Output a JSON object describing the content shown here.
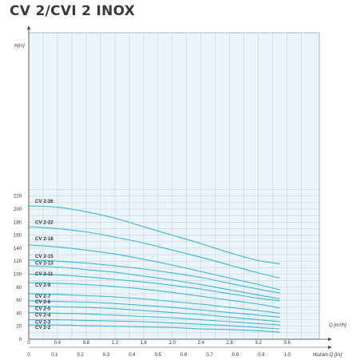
{
  "title": "CV 2/CVI 2 INOX",
  "chart_data": {
    "type": "line",
    "title": "CV 2/CVI 2 INOX",
    "ylabel": "H[m]",
    "xlabel_m3h": "Q [m³/h]",
    "xlabel_ls": "Hozam Q [l/s]",
    "xlim": [
      0,
      4.0
    ],
    "ylim": [
      0,
      230
    ],
    "y_ticks": [
      0,
      20,
      40,
      60,
      80,
      100,
      120,
      140,
      160,
      180,
      200,
      220
    ],
    "x_ticks_m3h": [
      "0",
      "0.4",
      "0.8",
      "1.2",
      "1.6",
      "2.0",
      "2.4",
      "2.8",
      "3.2",
      "3.6"
    ],
    "x_ticks_ls": [
      "0",
      "0.1",
      "0.2",
      "0.3",
      "0.4",
      "0.5",
      "0.6",
      "0.7",
      "0.8",
      "0.9",
      "1.0"
    ],
    "grid": true,
    "series": [
      {
        "name": "CV 2-26",
        "label_y": 210,
        "x": [
          0,
          0.4,
          0.8,
          1.2,
          1.6,
          2.0,
          2.4,
          2.8,
          3.2,
          3.5
        ],
        "y": [
          205,
          203,
          196,
          186,
          173,
          160,
          147,
          133,
          121,
          116
        ]
      },
      {
        "name": "CV 2-22",
        "label_y": 177,
        "x": [
          0,
          0.4,
          0.8,
          1.2,
          1.6,
          2.0,
          2.4,
          2.8,
          3.2,
          3.5
        ],
        "y": [
          173,
          170,
          165,
          157,
          148,
          137,
          126,
          114,
          102,
          94
        ]
      },
      {
        "name": "CV 2-18",
        "label_y": 152,
        "x": [
          0,
          0.4,
          0.8,
          1.2,
          1.6,
          2.0,
          2.4,
          2.8,
          3.2,
          3.5
        ],
        "y": [
          145,
          142,
          137,
          131,
          123,
          114,
          104,
          94,
          84,
          76
        ]
      },
      {
        "name": "CV 2-15",
        "label_y": 125,
        "x": [
          0,
          0.4,
          0.8,
          1.2,
          1.6,
          2.0,
          2.4,
          2.8,
          3.2,
          3.5
        ],
        "y": [
          122,
          120,
          117,
          113,
          108,
          102,
          95,
          86,
          77,
          71
        ]
      },
      {
        "name": "CV 2-13",
        "label_y": 115,
        "x": [
          0,
          0.4,
          0.8,
          1.2,
          1.6,
          2.0,
          2.4,
          2.8,
          3.2,
          3.5
        ],
        "y": [
          113,
          111,
          107,
          103,
          97,
          91,
          84,
          76,
          68,
          62
        ]
      },
      {
        "name": "CV 2-11",
        "label_y": 98,
        "x": [
          0,
          0.4,
          0.8,
          1.2,
          1.6,
          2.0,
          2.4,
          2.8,
          3.2,
          3.5
        ],
        "y": [
          100,
          99,
          96,
          92,
          88,
          83,
          77,
          70,
          63,
          59
        ]
      },
      {
        "name": "CV 2-9",
        "label_y": 81,
        "x": [
          0,
          0.4,
          0.8,
          1.2,
          1.6,
          2.0,
          2.4,
          2.8,
          3.2,
          3.5
        ],
        "y": [
          87,
          86,
          84,
          81,
          77,
          72,
          66,
          60,
          54,
          48
        ]
      },
      {
        "name": "CV 2-7",
        "label_y": 64,
        "x": [
          0,
          0.4,
          0.8,
          1.2,
          1.6,
          2.0,
          2.4,
          2.8,
          3.2,
          3.5
        ],
        "y": [
          70,
          69,
          67,
          65,
          62,
          58,
          54,
          49,
          44,
          40
        ]
      },
      {
        "name": "CV 2-6",
        "label_y": 55,
        "x": [
          0,
          0.4,
          0.8,
          1.2,
          1.6,
          2.0,
          2.4,
          2.8,
          3.2,
          3.5
        ],
        "y": [
          59,
          58,
          57,
          55,
          52,
          49,
          45,
          41,
          37,
          34
        ]
      },
      {
        "name": "CV 2-5",
        "label_y": 45,
        "x": [
          0,
          0.4,
          0.8,
          1.2,
          1.6,
          2.0,
          2.4,
          2.8,
          3.2,
          3.5
        ],
        "y": [
          51,
          50,
          49,
          47,
          44,
          41,
          38,
          34,
          30,
          27
        ]
      },
      {
        "name": "CV 2-4",
        "label_y": 35,
        "x": [
          0,
          0.4,
          0.8,
          1.2,
          1.6,
          2.0,
          2.4,
          2.8,
          3.2,
          3.5
        ],
        "y": [
          41,
          40,
          39,
          37,
          35,
          33,
          30,
          27,
          24,
          22
        ]
      },
      {
        "name": "CV 2-3",
        "label_y": 24,
        "x": [
          0,
          0.4,
          0.8,
          1.2,
          1.6,
          2.0,
          2.4,
          2.8,
          3.2,
          3.5
        ],
        "y": [
          30,
          30,
          29,
          28,
          27,
          25,
          23,
          21,
          18,
          16
        ]
      },
      {
        "name": "CV 2-2",
        "label_y": 16,
        "x": [
          0,
          0.4,
          0.8,
          1.2,
          1.6,
          2.0,
          2.4,
          2.8,
          3.2,
          3.5
        ],
        "y": [
          22,
          22,
          21,
          20,
          19,
          18,
          16,
          15,
          13,
          11
        ]
      }
    ],
    "colors": {
      "curve": "#3bb8d8",
      "grid": "#c9d2d8",
      "panel": "#eaf5fa",
      "axis": "#444444"
    }
  }
}
